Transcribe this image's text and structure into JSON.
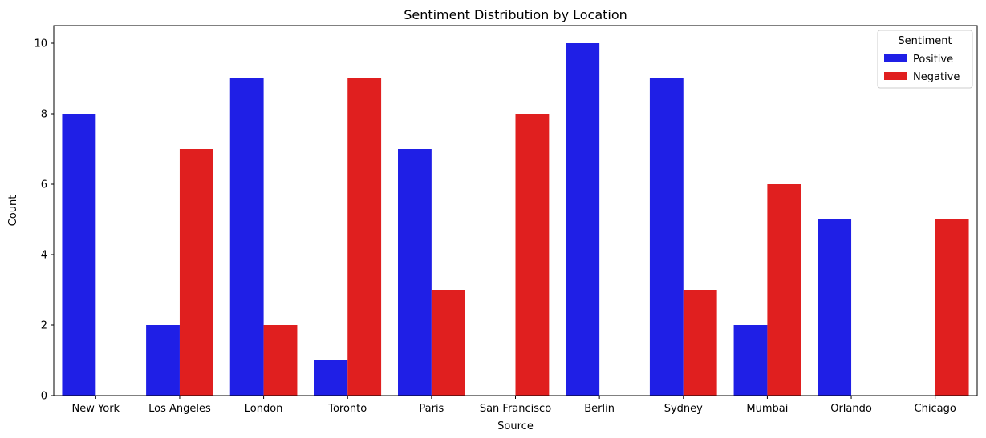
{
  "chart_data": {
    "type": "bar",
    "title": "Sentiment Distribution by Location",
    "xlabel": "Source",
    "ylabel": "Count",
    "categories": [
      " New York",
      " Los Angeles",
      " London",
      " Toronto",
      " Paris",
      " San Francisco",
      " Berlin",
      " Sydney",
      " Mumbai",
      " Orlando",
      " Chicago"
    ],
    "series": [
      {
        "name": " Positive",
        "color": "#1f1fe6",
        "values": [
          8,
          2,
          9,
          1,
          7,
          0,
          10,
          9,
          2,
          5,
          0
        ]
      },
      {
        "name": " Negative",
        "color": "#e01f1f",
        "values": [
          0,
          7,
          2,
          9,
          3,
          8,
          0,
          3,
          6,
          0,
          5
        ]
      }
    ],
    "ylim": [
      0,
      10.5
    ],
    "yticks": [
      0,
      2,
      4,
      6,
      8,
      10
    ],
    "legend": {
      "title": "Sentiment",
      "placement": "top-right"
    },
    "grid": false
  }
}
